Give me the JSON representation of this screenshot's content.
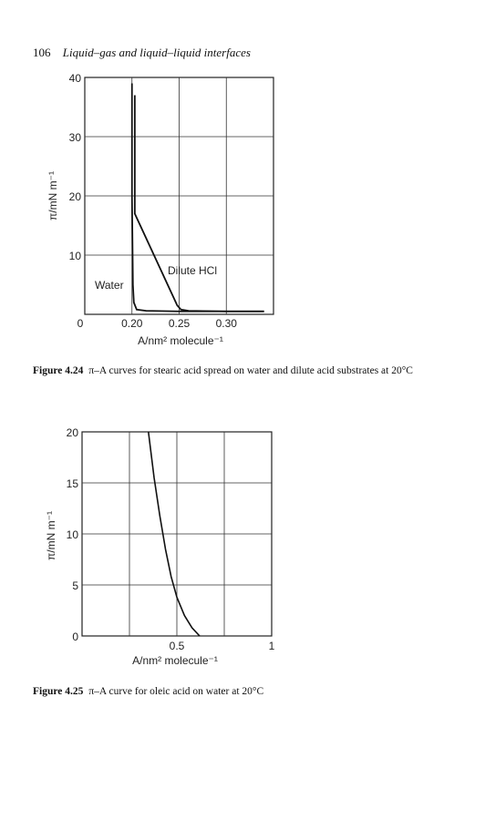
{
  "header": {
    "page_number": "106",
    "running_title": "Liquid–gas and liquid–liquid interfaces"
  },
  "figures": [
    {
      "caption_label": "Figure 4.24",
      "caption_text": "π–A curves for stearic acid spread on water and dilute acid substrates at 20°C",
      "ylabel": "π/mN m⁻¹",
      "xlabel": "A/nm² molecule⁻¹",
      "annotations": [
        "Dilute HCl",
        "Water"
      ]
    },
    {
      "caption_label": "Figure 4.25",
      "caption_text": "π–A curve for oleic acid on water at 20°C",
      "ylabel": "π/mN m⁻¹",
      "xlabel": "A/nm² molecule⁻¹"
    }
  ],
  "chart_data": [
    {
      "type": "line",
      "title": "",
      "xlabel": "A/nm² molecule⁻¹",
      "ylabel": "π/mN m⁻¹",
      "xlim": [
        0.15,
        0.35
      ],
      "ylim": [
        0,
        40
      ],
      "x_ticks": [
        "0",
        "0.20",
        "0.25",
        "0.30"
      ],
      "y_ticks": [
        "10",
        "20",
        "30",
        "40"
      ],
      "grid": true,
      "series": [
        {
          "name": "Water",
          "x": [
            0.2,
            0.2,
            0.201,
            0.202,
            0.205,
            0.215,
            0.25,
            0.3,
            0.34
          ],
          "y": [
            39,
            20,
            5,
            2,
            0.8,
            0.6,
            0.5,
            0.5,
            0.5
          ]
        },
        {
          "name": "Dilute HCl",
          "x": [
            0.203,
            0.203,
            0.248,
            0.252,
            0.26,
            0.3,
            0.34
          ],
          "y": [
            37,
            17,
            1.5,
            0.8,
            0.6,
            0.5,
            0.5
          ]
        }
      ]
    },
    {
      "type": "line",
      "title": "",
      "xlabel": "A/nm² molecule⁻¹",
      "ylabel": "π/mN m⁻¹",
      "xlim": [
        0,
        1
      ],
      "ylim": [
        0,
        20
      ],
      "x_ticks": [
        "0.5",
        "1"
      ],
      "y_ticks": [
        "0",
        "5",
        "10",
        "15",
        "20"
      ],
      "grid": true,
      "series": [
        {
          "name": "",
          "x": [
            0.35,
            0.38,
            0.41,
            0.44,
            0.47,
            0.5,
            0.54,
            0.58,
            0.62
          ],
          "y": [
            20,
            15.5,
            11.8,
            8.5,
            5.8,
            3.8,
            2.0,
            0.8,
            0
          ]
        }
      ]
    }
  ]
}
